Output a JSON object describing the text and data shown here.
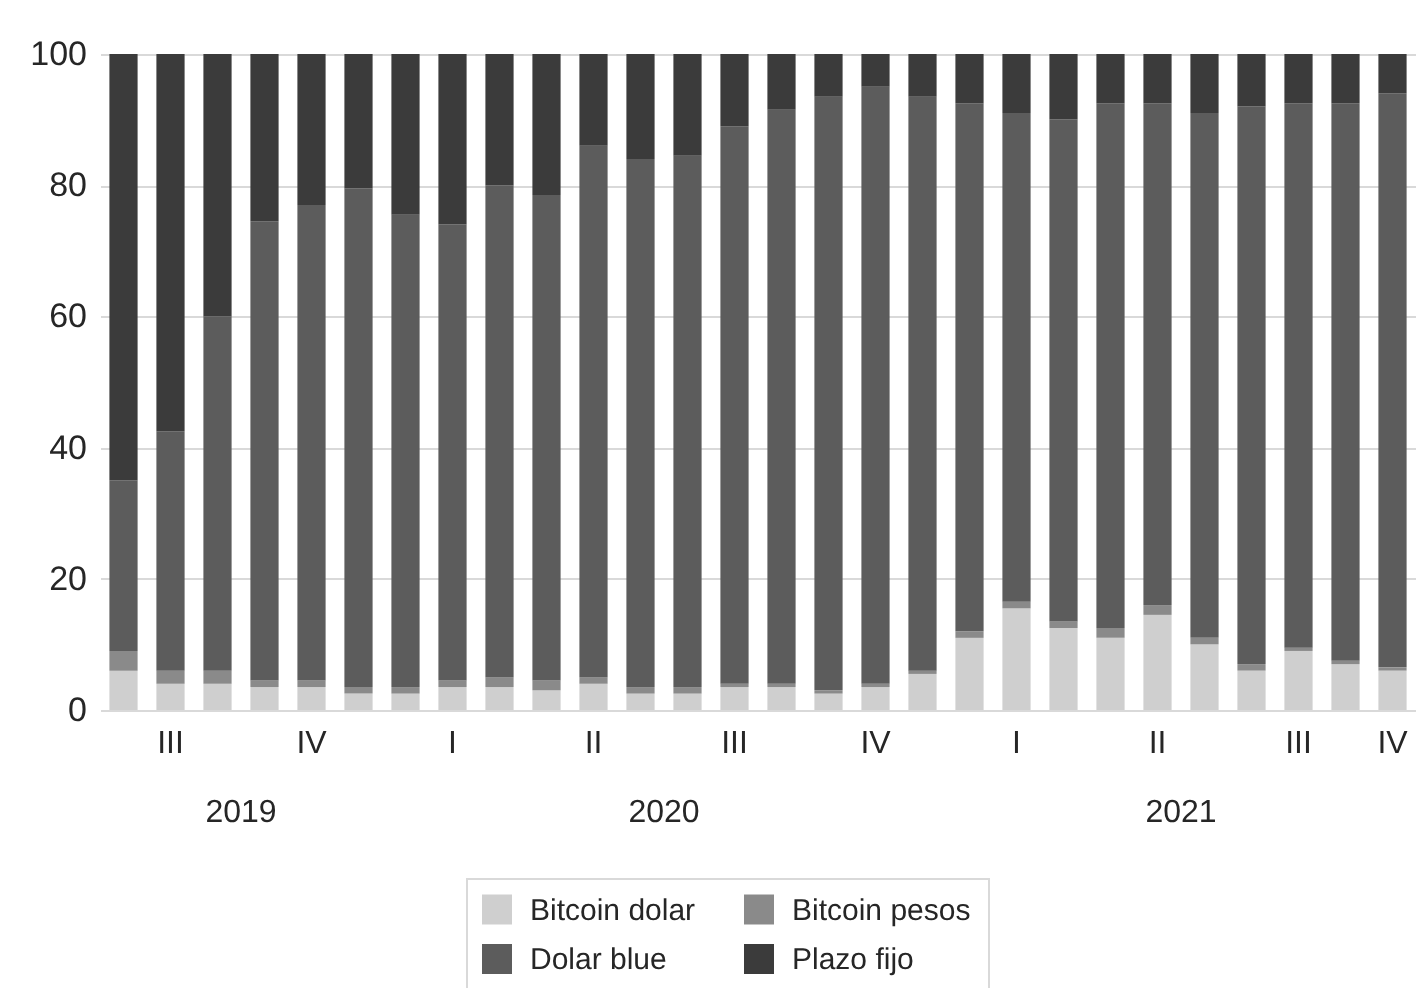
{
  "chart_data": {
    "type": "bar",
    "stacked": true,
    "categories": [
      null,
      "III",
      null,
      null,
      "IV",
      null,
      null,
      "I",
      null,
      null,
      "II",
      null,
      null,
      "III",
      null,
      null,
      "IV",
      null,
      null,
      "I",
      null,
      null,
      "II",
      null,
      null,
      "III",
      null,
      "IV"
    ],
    "ylim": [
      0,
      100
    ],
    "yticks": [
      0,
      20,
      40,
      60,
      80,
      100
    ],
    "grid": "y",
    "legend": "bottom",
    "annotations": [
      "2019",
      "2020",
      "2021"
    ],
    "series": [
      {
        "name": "Bitcoin dolar",
        "color": "#cfcfcf",
        "values": [
          6,
          4,
          4,
          3.5,
          3.5,
          2.5,
          2.5,
          3.5,
          3.5,
          3,
          4,
          2.5,
          2.5,
          3.5,
          3.5,
          2.5,
          3.5,
          5.5,
          11,
          15.5,
          12.5,
          11,
          14.5,
          10,
          6,
          9,
          7,
          6
        ]
      },
      {
        "name": "Bitcoin pesos",
        "color": "#8a8a8a",
        "values": [
          3,
          2,
          2,
          1,
          1,
          1,
          1,
          1,
          1.5,
          1.5,
          1,
          1,
          1,
          0.5,
          0.5,
          0.5,
          0.5,
          0.5,
          1,
          1,
          1,
          1.5,
          1.5,
          1,
          1,
          0.5,
          0.5,
          0.5
        ]
      },
      {
        "name": "Dolar blue",
        "color": "#5c5c5c",
        "values": [
          26,
          36.5,
          54,
          70,
          72.5,
          76,
          72,
          69.5,
          75,
          74,
          81,
          80.5,
          81,
          85,
          87.5,
          90.5,
          91,
          87.5,
          80.5,
          74.5,
          76.5,
          80,
          76.5,
          80,
          85,
          83,
          85,
          87.5
        ]
      },
      {
        "name": "Plazo fijo",
        "color": "#3b3b3b",
        "values": [
          65,
          57.5,
          40,
          25.5,
          23,
          20.5,
          24.5,
          26,
          20,
          21.5,
          14,
          16,
          15.5,
          11,
          8.5,
          6.5,
          5,
          6.5,
          7.5,
          9,
          10,
          7.5,
          7.5,
          9,
          8,
          7.5,
          7.5,
          6
        ]
      }
    ]
  }
}
